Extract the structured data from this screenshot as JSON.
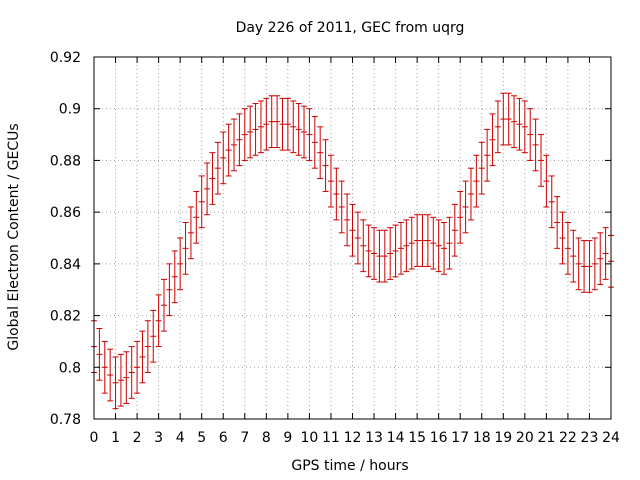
{
  "chart_data": {
    "type": "line",
    "title": "Day 226 of 2011, GEC from uqrg",
    "xlabel": "GPS time / hours",
    "ylabel": "Global Electron Content / GECUs",
    "xlim": [
      0,
      24
    ],
    "ylim": [
      0.78,
      0.92
    ],
    "x_ticks": [
      0,
      1,
      2,
      3,
      4,
      5,
      6,
      7,
      8,
      9,
      10,
      11,
      12,
      13,
      14,
      15,
      16,
      17,
      18,
      19,
      20,
      21,
      22,
      23,
      24
    ],
    "y_ticks": [
      0.78,
      0.8,
      0.82,
      0.84,
      0.86,
      0.88,
      0.9,
      0.92
    ],
    "x_tick_labels": [
      "0",
      "1",
      "2",
      "3",
      "4",
      "5",
      "6",
      "7",
      "8",
      "9",
      "10",
      "11",
      "12",
      "13",
      "14",
      "15",
      "16",
      "17",
      "18",
      "19",
      "20",
      "21",
      "22",
      "23",
      "24"
    ],
    "y_tick_labels": [
      "0.78",
      "0.8",
      "0.82",
      "0.84",
      "0.86",
      "0.88",
      "0.9",
      "0.92"
    ],
    "grid": true,
    "series": [
      {
        "color": "#cc0000",
        "error": 0.01,
        "x": [
          0,
          0.25,
          0.5,
          0.75,
          1,
          1.25,
          1.5,
          1.75,
          2,
          2.25,
          2.5,
          2.75,
          3,
          3.25,
          3.5,
          3.75,
          4,
          4.25,
          4.5,
          4.75,
          5,
          5.25,
          5.5,
          5.75,
          6,
          6.25,
          6.5,
          6.75,
          7,
          7.25,
          7.5,
          7.75,
          8,
          8.25,
          8.5,
          8.75,
          9,
          9.25,
          9.5,
          9.75,
          10,
          10.25,
          10.5,
          10.75,
          11,
          11.25,
          11.5,
          11.75,
          12,
          12.25,
          12.5,
          12.75,
          13,
          13.25,
          13.5,
          13.75,
          14,
          14.25,
          14.5,
          14.75,
          15,
          15.25,
          15.5,
          15.75,
          16,
          16.25,
          16.5,
          16.75,
          17,
          17.25,
          17.5,
          17.75,
          18,
          18.25,
          18.5,
          18.75,
          19,
          19.25,
          19.5,
          19.75,
          20,
          20.25,
          20.5,
          20.75,
          21,
          21.25,
          21.5,
          21.75,
          22,
          22.25,
          22.5,
          22.75,
          23,
          23.25,
          23.5,
          23.75,
          24
        ],
        "y": [
          0.808,
          0.805,
          0.8,
          0.797,
          0.794,
          0.795,
          0.796,
          0.798,
          0.8,
          0.804,
          0.808,
          0.812,
          0.818,
          0.824,
          0.83,
          0.835,
          0.84,
          0.846,
          0.852,
          0.858,
          0.864,
          0.869,
          0.873,
          0.877,
          0.881,
          0.884,
          0.886,
          0.888,
          0.89,
          0.891,
          0.892,
          0.893,
          0.894,
          0.895,
          0.895,
          0.894,
          0.894,
          0.893,
          0.892,
          0.891,
          0.89,
          0.887,
          0.883,
          0.878,
          0.872,
          0.867,
          0.862,
          0.857,
          0.853,
          0.85,
          0.847,
          0.845,
          0.844,
          0.843,
          0.843,
          0.844,
          0.845,
          0.846,
          0.847,
          0.848,
          0.849,
          0.849,
          0.849,
          0.848,
          0.847,
          0.846,
          0.848,
          0.853,
          0.858,
          0.862,
          0.867,
          0.872,
          0.877,
          0.882,
          0.888,
          0.893,
          0.896,
          0.896,
          0.895,
          0.894,
          0.893,
          0.89,
          0.886,
          0.88,
          0.872,
          0.864,
          0.856,
          0.85,
          0.846,
          0.843,
          0.84,
          0.839,
          0.839,
          0.84,
          0.842,
          0.844,
          0.841
        ]
      }
    ]
  }
}
